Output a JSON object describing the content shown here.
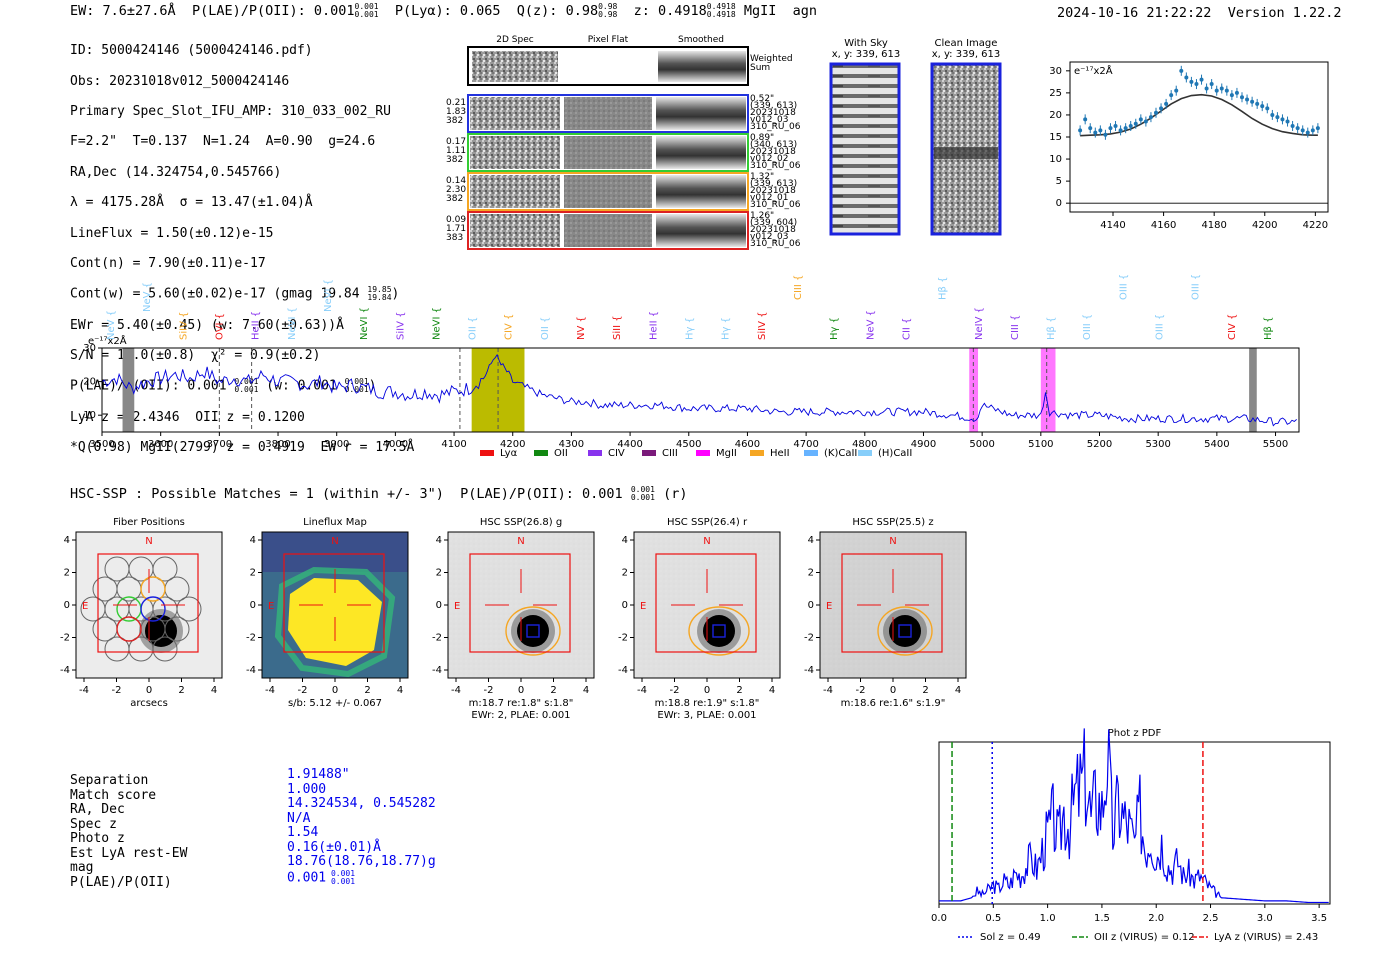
{
  "header": {
    "ew": "EW: 7.6±27.6Å",
    "plae": "P(LAE)/P(OII): 0.001",
    "plae_sup": "0.001",
    "plae_sub": "0.001",
    "plya": "P(Lyα): 0.065",
    "qz": "Q(z): 0.98",
    "qz_sup": "0.98",
    "qz_sub": "0.98",
    "z": "z: 0.4918",
    "z_sup": "0.4918",
    "z_sub": "0.4918",
    "tags": "MgII  agn",
    "datetime": "2024-10-16 21:22:22",
    "version": "Version 1.22.2"
  },
  "info": {
    "l1": "ID: 5000424146 (5000424146.pdf)",
    "l2": "Obs: 20231018v012_5000424146",
    "l3": "Primary Spec_Slot_IFU_AMP: 310_033_002_RU",
    "l4": "F=2.2\"  T=0.137  N=1.24  A=0.90  g=24.6",
    "l5": "RA,Dec (14.324754,0.545766)",
    "l6": "λ = 4175.28Å  σ = 13.47(±1.04)Å",
    "l7": "LineFlux = 1.50(±0.12)e-15",
    "l8": "Cont(n) = 7.90(±0.11)e-17",
    "l9": "Cont(w) = 5.60(±0.02)e-17 (gmag 19.84",
    "l9_sup": "19.85",
    "l9_sub": "19.84",
    "l10": "EWr = 5.40(±0.45) (w: 7.60(±0.63))Å",
    "l11": "S/N = 18.0(±0.8)  χ² = 0.9(±0.2)",
    "l12a": "P(LAE)/P(OII): 0.001",
    "l12_sup": "0.001",
    "l12_sub": "0.001",
    "l12b": "(w: 0.001",
    "l12b_sup": "0.001",
    "l12b_sub": "0.001",
    "l13": "LyA z = 2.4346  OII z = 0.1200",
    "l14": "*Q(0.98) MgII(2799) z = 0.4919  EW r = 17.5Å"
  },
  "cutouts": {
    "col1": "2D Spec",
    "col2": "Pixel Flat",
    "col3": "Smoothed",
    "weighted": "Weighted\nSum",
    "rows": [
      {
        "left": "0.21\n1.83\n382",
        "right": "0.52\"\n(339, 613)\n20231018\nv012_03\n310_RU_067",
        "color": "#2233dd"
      },
      {
        "left": "0.17\n1.11\n382",
        "right": "0.89\"\n(340, 613)\n20231018\nv012_02\n310_RU_067",
        "color": "#33cc33"
      },
      {
        "left": "0.14\n2.30\n382",
        "right": "1.32\"\n(339, 613)\n20231018\nv012_01\n310_RU_067",
        "color": "#f5a623"
      },
      {
        "left": "0.09\n1.71\n383",
        "right": "1.26\"\n(339, 604)\n20231018\nv012_03\n310_RU_066",
        "color": "#dd2222"
      }
    ]
  },
  "sky": {
    "title1": "With Sky",
    "coord1": "x, y: 339, 613",
    "title2": "Clean Image",
    "coord2": "x, y: 339, 613"
  },
  "fit_chart": {
    "unit": "e⁻¹⁷x2Å",
    "yticks": [
      "0",
      "5",
      "10",
      "15",
      "20",
      "25",
      "30"
    ],
    "xticks": [
      "4140",
      "4160",
      "4180",
      "4200",
      "4220"
    ]
  },
  "full_spectrum": {
    "unit": "e⁻¹⁷x2Å",
    "yticks": [
      "10",
      "20",
      "30"
    ],
    "xticks": [
      "3500",
      "3600",
      "3700",
      "3800",
      "3900",
      "4000",
      "4100",
      "4200",
      "4300",
      "4400",
      "4500",
      "4600",
      "4700",
      "4800",
      "4900",
      "5000",
      "5100",
      "5200",
      "5300",
      "5400",
      "5500"
    ],
    "legend": [
      {
        "label": "Lyα",
        "color": "#ee1111"
      },
      {
        "label": "OII",
        "color": "#118811"
      },
      {
        "label": "CIV",
        "color": "#8833ee"
      },
      {
        "label": "CIII",
        "color": "#7a1a7a"
      },
      {
        "label": "MgII",
        "color": "#ff00ff"
      },
      {
        "label": "HeII",
        "color": "#f5a623"
      },
      {
        "label": "(K)CaII",
        "color": "#66b3ff"
      },
      {
        "label": "(H)CaII",
        "color": "#87cefa"
      }
    ],
    "lines": [
      {
        "label": "NeV",
        "color": "#87cefa"
      },
      {
        "label": "NeV",
        "color": "#87cefa"
      },
      {
        "label": "SiIV",
        "color": "#f5a623"
      },
      {
        "label": "OVI",
        "color": "#ee1111"
      },
      {
        "label": "HeII",
        "color": "#8833ee"
      },
      {
        "label": "NeVI",
        "color": "#87cefa"
      },
      {
        "label": "NeVI",
        "color": "#87cefa"
      },
      {
        "label": "NeVI",
        "color": "#118811"
      },
      {
        "label": "SiIV",
        "color": "#8833ee"
      },
      {
        "label": "NeVI",
        "color": "#118811"
      },
      {
        "label": "OII",
        "color": "#87cefa"
      },
      {
        "label": "CIV",
        "color": "#f5a623"
      },
      {
        "label": "OII",
        "color": "#87cefa"
      },
      {
        "label": "NV",
        "color": "#ee1111"
      },
      {
        "label": "SiII",
        "color": "#ee1111"
      },
      {
        "label": "HeII",
        "color": "#8833ee"
      },
      {
        "label": "Hγ",
        "color": "#87cefa"
      },
      {
        "label": "Hγ",
        "color": "#87cefa"
      },
      {
        "label": "SiIV",
        "color": "#ee1111"
      },
      {
        "label": "CIII",
        "color": "#f5a623"
      },
      {
        "label": "Hγ",
        "color": "#118811"
      },
      {
        "label": "NeV",
        "color": "#8833ee"
      },
      {
        "label": "CII",
        "color": "#8833ee"
      },
      {
        "label": "Hβ",
        "color": "#87cefa"
      },
      {
        "label": "NeIV",
        "color": "#8833ee"
      },
      {
        "label": "CIII",
        "color": "#8833ee"
      },
      {
        "label": "Hβ",
        "color": "#87cefa"
      },
      {
        "label": "OIII",
        "color": "#87cefa"
      },
      {
        "label": "OIII",
        "color": "#87cefa"
      },
      {
        "label": "OIII",
        "color": "#87cefa"
      },
      {
        "label": "OIII",
        "color": "#87cefa"
      },
      {
        "label": "CIV",
        "color": "#ee1111"
      },
      {
        "label": "Hβ",
        "color": "#118811"
      }
    ]
  },
  "hsc": {
    "summary": "HSC-SSP : Possible Matches = 1 (within +/- 3\")  P(LAE)/P(OII): 0.001",
    "summary_sup": "0.001",
    "summary_sub": "0.001",
    "summary_tail": "(r)",
    "panels": [
      {
        "title": "Fiber Positions",
        "cap1": "arcsecs",
        "cap2": ""
      },
      {
        "title": "Lineflux Map",
        "cap1": "s/b: 5.12 +/- 0.067",
        "cap2": ""
      },
      {
        "title": "HSC SSP(26.8) g",
        "cap1": "m:18.7  re:1.8\"  s:1.8\"",
        "cap2": "EWr: 2, PLAE: 0.001"
      },
      {
        "title": "HSC SSP(26.4) r",
        "cap1": "m:18.8  re:1.9\"  s:1.8\"",
        "cap2": "EWr: 3, PLAE: 0.001"
      },
      {
        "title": "HSC SSP(25.5) z",
        "cap1": "m:18.6  re:1.6\"  s:1.9\"",
        "cap2": ""
      }
    ],
    "axis_ticks": [
      "-4",
      "-2",
      "0",
      "2",
      "4"
    ],
    "north": "N",
    "east": "E"
  },
  "match": {
    "labels": [
      "Separation",
      "Match score",
      "RA, Dec",
      "Spec z",
      "Photo z",
      "Est LyA rest-EW",
      "mag",
      "P(LAE)/P(OII)"
    ],
    "values": [
      "1.91488\"",
      "1.000",
      "14.324534, 0.545282",
      "N/A",
      "1.54",
      "0.16(±0.01)Å",
      "18.76(18.76,18.77)g",
      "0.001"
    ],
    "plae_sup": "0.001",
    "plae_sub": "0.001"
  },
  "photz": {
    "title": "Phot z PDF",
    "xticks": [
      "0.0",
      "0.5",
      "1.0",
      "1.5",
      "2.0",
      "2.5",
      "3.0",
      "3.5"
    ],
    "legend": [
      {
        "label": "Sol z = 0.49",
        "color": "#0000ee"
      },
      {
        "label": "OII z (VIRUS) = 0.12",
        "color": "#118811"
      },
      {
        "label": "LyA z (VIRUS) = 2.43",
        "color": "#ee1111"
      }
    ]
  },
  "chart_data": [
    {
      "type": "line",
      "title": "Line fit",
      "xlabel": "",
      "ylabel": "e-17 x2Å",
      "xlim": [
        4123,
        4225
      ],
      "ylim": [
        -2,
        32
      ],
      "series": [
        {
          "name": "data",
          "x": [
            4127,
            4129,
            4131,
            4133,
            4135,
            4137,
            4139,
            4141,
            4143,
            4145,
            4147,
            4149,
            4151,
            4153,
            4155,
            4157,
            4159,
            4161,
            4163,
            4165,
            4167,
            4169,
            4171,
            4173,
            4175,
            4177,
            4179,
            4181,
            4183,
            4185,
            4187,
            4189,
            4191,
            4193,
            4195,
            4197,
            4199,
            4201,
            4203,
            4205,
            4207,
            4209,
            4211,
            4213,
            4215,
            4217,
            4219,
            4221
          ],
          "y": [
            16.5,
            19,
            17,
            16,
            16.5,
            15.5,
            17,
            17.5,
            16.5,
            17,
            17.5,
            18,
            19,
            18.5,
            19.5,
            20.5,
            21.5,
            22.5,
            24.5,
            25.5,
            30,
            28.5,
            27.5,
            27,
            28,
            26,
            27,
            25.5,
            26,
            25.5,
            24.5,
            25,
            24,
            23.5,
            23,
            22.5,
            22,
            21.5,
            20,
            19.5,
            19,
            18.5,
            17.5,
            17,
            16.5,
            16,
            16.5,
            17
          ]
        },
        {
          "name": "model",
          "x": [
            4127,
            4131,
            4135,
            4139,
            4143,
            4147,
            4151,
            4155,
            4159,
            4163,
            4167,
            4171,
            4175,
            4179,
            4183,
            4187,
            4191,
            4195,
            4199,
            4203,
            4207,
            4211,
            4215,
            4219,
            4221
          ],
          "y": [
            15.3,
            15.4,
            15.5,
            15.7,
            16.1,
            16.8,
            17.9,
            19.3,
            20.9,
            22.5,
            23.7,
            24.4,
            24.6,
            24.3,
            23.5,
            22.3,
            20.8,
            19.2,
            17.9,
            16.9,
            16.2,
            15.8,
            15.5,
            15.4,
            15.4
          ]
        }
      ]
    },
    {
      "type": "line",
      "title": "Full spectrum",
      "xlabel": "",
      "ylabel": "e-17 x2Å",
      "xlim": [
        3500,
        5540
      ],
      "ylim": [
        5,
        30
      ],
      "series": [
        {
          "name": "flux",
          "x": [
            3500,
            3525,
            3550,
            3575,
            3600,
            3625,
            3650,
            3675,
            3700,
            3725,
            3750,
            3775,
            3800,
            3825,
            3850,
            3875,
            3900,
            3925,
            3950,
            3975,
            4000,
            4025,
            4050,
            4075,
            4100,
            4125,
            4150,
            4160,
            4170,
            4180,
            4190,
            4200,
            4225,
            4250,
            4275,
            4300,
            4325,
            4350,
            4400,
            4450,
            4500,
            4550,
            4600,
            4650,
            4700,
            4750,
            4800,
            4850,
            4900,
            4950,
            4990,
            5000,
            5050,
            5100,
            5108,
            5115,
            5150,
            5200,
            5250,
            5300,
            5350,
            5400,
            5450,
            5500,
            5540
          ],
          "y": [
            20,
            21,
            18,
            20,
            21,
            22,
            21,
            23,
            20,
            21,
            20,
            22,
            20,
            20,
            19,
            20,
            18,
            19,
            18,
            17,
            17,
            16,
            17,
            16,
            17,
            18,
            21,
            24,
            28,
            25,
            23,
            20,
            18,
            16,
            15,
            14,
            14,
            13,
            13,
            13,
            12,
            12,
            12,
            11,
            11,
            11,
            11,
            11,
            11,
            10,
            9,
            13,
            10,
            10,
            17,
            11,
            10,
            10,
            9,
            9,
            9,
            9,
            9,
            8,
            8
          ]
        }
      ],
      "highlight_regions": [
        [
          4130,
          4220
        ],
        [
          4978,
          4993
        ],
        [
          5100,
          5125
        ]
      ],
      "masked_regions": [
        [
          3535,
          3555
        ],
        [
          5455,
          5468
        ]
      ],
      "markers": [
        3700,
        3755,
        4110,
        4175,
        4985,
        5110
      ]
    },
    {
      "type": "line",
      "title": "Phot z PDF",
      "xlabel": "",
      "ylabel": "",
      "xlim": [
        0.0,
        3.6
      ],
      "ylim": [
        0,
        1
      ],
      "series": [
        {
          "name": "pdf",
          "x": [
            0.0,
            0.2,
            0.3,
            0.35,
            0.4,
            0.45,
            0.5,
            0.55,
            0.6,
            0.65,
            0.7,
            0.75,
            0.8,
            0.85,
            0.9,
            0.95,
            1.0,
            1.05,
            1.1,
            1.15,
            1.2,
            1.25,
            1.3,
            1.35,
            1.4,
            1.45,
            1.5,
            1.55,
            1.6,
            1.65,
            1.7,
            1.75,
            1.8,
            1.85,
            1.9,
            1.95,
            2.0,
            2.05,
            2.1,
            2.15,
            2.2,
            2.25,
            2.3,
            2.35,
            2.4,
            2.45,
            2.5,
            2.6,
            2.8,
            3.0,
            3.2,
            3.4,
            3.6
          ],
          "y": [
            0.02,
            0.02,
            0.04,
            0.08,
            0.06,
            0.09,
            0.12,
            0.1,
            0.15,
            0.12,
            0.2,
            0.18,
            0.24,
            0.3,
            0.22,
            0.34,
            0.45,
            0.55,
            0.4,
            0.6,
            0.5,
            0.68,
            0.75,
            0.82,
            0.55,
            0.7,
            0.6,
            0.98,
            0.45,
            0.65,
            0.55,
            0.5,
            0.38,
            0.6,
            0.35,
            0.45,
            0.3,
            0.4,
            0.25,
            0.22,
            0.28,
            0.18,
            0.2,
            0.15,
            0.18,
            0.14,
            0.1,
            0.04,
            0.03,
            0.02,
            0.02,
            0.01,
            0.01
          ]
        }
      ],
      "vlines": [
        {
          "x": 0.12,
          "style": "dashed",
          "name": "OII"
        },
        {
          "x": 0.49,
          "style": "dotted",
          "name": "Sol"
        },
        {
          "x": 2.43,
          "style": "dashed",
          "name": "LyA"
        }
      ]
    }
  ]
}
